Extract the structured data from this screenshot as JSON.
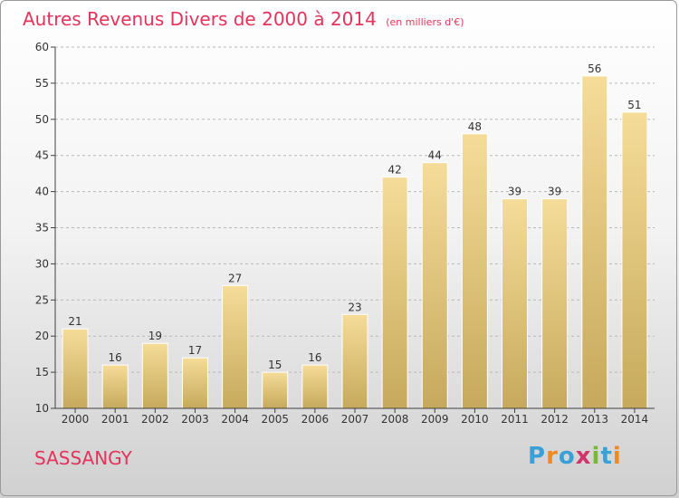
{
  "title": "Autres Revenus Divers de 2000 à 2014",
  "unit_note": "(en milliers d'€)",
  "place_name": "SASSANGY",
  "logo": {
    "letters": [
      "P",
      "r",
      "o",
      "x",
      "i",
      "t",
      "i"
    ],
    "colors": [
      "#3aa0d8",
      "#f08a1e",
      "#3aa0d8",
      "#d1336b",
      "#7ab83b",
      "#3aa0d8",
      "#f08a1e"
    ]
  },
  "colors": {
    "title": "#e5335b",
    "bar_top": "#f5dc98",
    "bar_bottom": "#c6a95c",
    "bar_edge": "#ffffff",
    "axis": "#404040",
    "grid": "#b8b8b8"
  },
  "chart_data": {
    "type": "bar",
    "title": "Autres Revenus Divers de 2000 à 2014",
    "xlabel": "",
    "ylabel": "",
    "categories": [
      "2000",
      "2001",
      "2002",
      "2003",
      "2004",
      "2005",
      "2006",
      "2007",
      "2008",
      "2009",
      "2010",
      "2011",
      "2012",
      "2013",
      "2014"
    ],
    "values": [
      21,
      16,
      19,
      17,
      27,
      15,
      16,
      23,
      42,
      44,
      48,
      39,
      39,
      56,
      51
    ],
    "ylim": [
      10,
      60
    ],
    "yticks": [
      10,
      15,
      20,
      25,
      30,
      35,
      40,
      45,
      50,
      55,
      60
    ],
    "grid": "horizontal dashed",
    "legend": "none"
  }
}
